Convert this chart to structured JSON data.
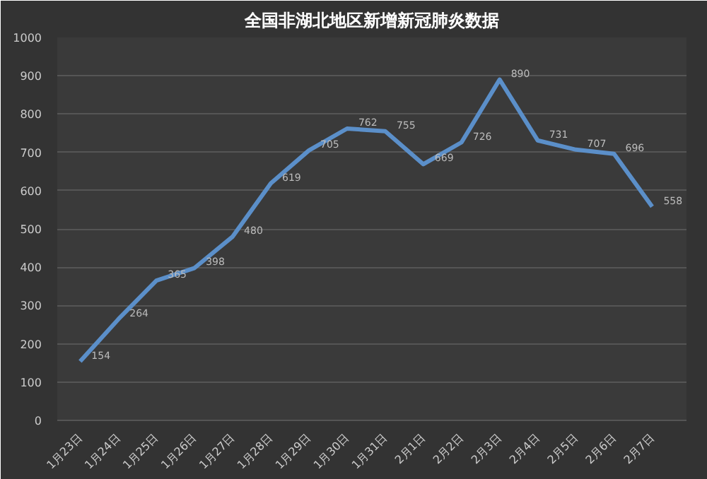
{
  "chart_data": {
    "type": "line",
    "title": "全国非湖北地区新增新冠肺炎数据",
    "categories": [
      "1月23日",
      "1月24日",
      "1月25日",
      "1月26日",
      "1月27日",
      "1月28日",
      "1月29日",
      "1月30日",
      "1月31日",
      "2月1日",
      "2月2日",
      "2月3日",
      "2月4日",
      "2月5日",
      "2月6日",
      "2月7日"
    ],
    "series": [
      {
        "color": "#5b8fc9",
        "values": [
          154,
          264,
          365,
          398,
          480,
          619,
          705,
          762,
          755,
          669,
          726,
          890,
          731,
          707,
          696,
          558
        ]
      }
    ],
    "ylim": [
      0,
      1000
    ],
    "yticks": [
      0,
      100,
      200,
      300,
      400,
      500,
      600,
      700,
      800,
      900,
      1000
    ],
    "grid": "y",
    "data_labels": true,
    "marker": "none",
    "line_style": "solid"
  }
}
